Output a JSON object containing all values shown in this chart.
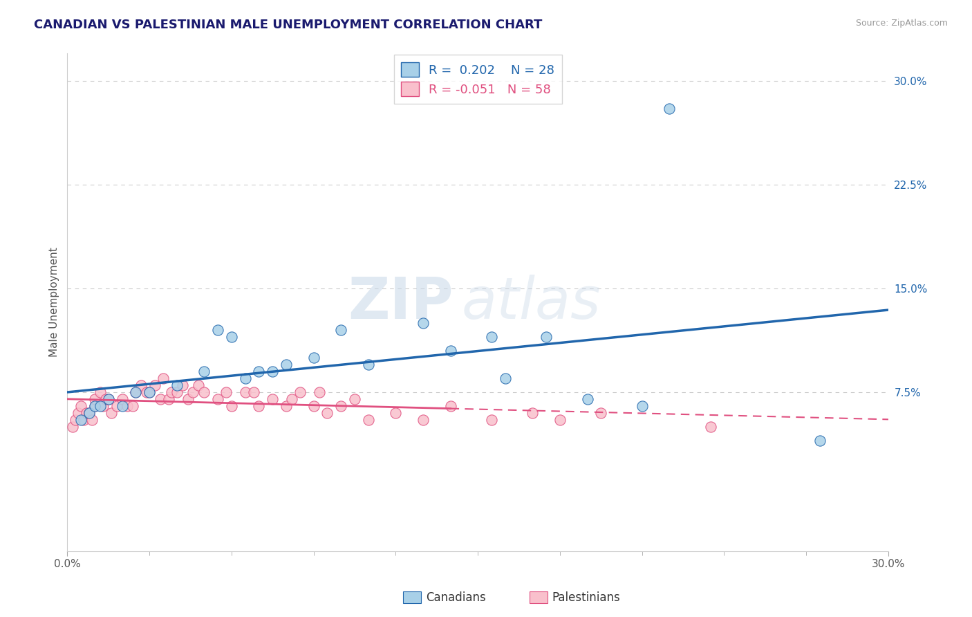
{
  "title": "CANADIAN VS PALESTINIAN MALE UNEMPLOYMENT CORRELATION CHART",
  "source": "Source: ZipAtlas.com",
  "ylabel": "Male Unemployment",
  "xlim": [
    0.0,
    0.3
  ],
  "ylim": [
    -0.04,
    0.32
  ],
  "grid_color": "#cccccc",
  "background_color": "#ffffff",
  "canadian_color": "#a8d0e8",
  "palestinian_color": "#f9c0cc",
  "canadian_line_color": "#2166ac",
  "palestinian_line_color": "#e05080",
  "R_canadian": 0.202,
  "N_canadian": 28,
  "R_palestinian": -0.051,
  "N_palestinian": 58,
  "canadians_x": [
    0.005,
    0.008,
    0.01,
    0.012,
    0.015,
    0.02,
    0.025,
    0.03,
    0.04,
    0.05,
    0.055,
    0.06,
    0.065,
    0.07,
    0.075,
    0.08,
    0.09,
    0.1,
    0.11,
    0.13,
    0.14,
    0.155,
    0.16,
    0.175,
    0.19,
    0.21,
    0.22,
    0.275
  ],
  "canadians_y": [
    0.055,
    0.06,
    0.065,
    0.065,
    0.07,
    0.065,
    0.075,
    0.075,
    0.08,
    0.09,
    0.12,
    0.115,
    0.085,
    0.09,
    0.09,
    0.095,
    0.1,
    0.12,
    0.095,
    0.125,
    0.105,
    0.115,
    0.085,
    0.115,
    0.07,
    0.065,
    0.28,
    0.04
  ],
  "palestinians_x": [
    0.002,
    0.003,
    0.004,
    0.005,
    0.006,
    0.007,
    0.008,
    0.009,
    0.01,
    0.01,
    0.012,
    0.013,
    0.014,
    0.015,
    0.016,
    0.018,
    0.02,
    0.022,
    0.024,
    0.025,
    0.027,
    0.029,
    0.03,
    0.032,
    0.034,
    0.035,
    0.037,
    0.038,
    0.04,
    0.042,
    0.044,
    0.046,
    0.048,
    0.05,
    0.055,
    0.058,
    0.06,
    0.065,
    0.068,
    0.07,
    0.075,
    0.08,
    0.082,
    0.085,
    0.09,
    0.092,
    0.095,
    0.1,
    0.105,
    0.11,
    0.12,
    0.13,
    0.14,
    0.155,
    0.17,
    0.18,
    0.195,
    0.235
  ],
  "palestinians_y": [
    0.05,
    0.055,
    0.06,
    0.065,
    0.055,
    0.06,
    0.06,
    0.055,
    0.065,
    0.07,
    0.075,
    0.065,
    0.07,
    0.07,
    0.06,
    0.065,
    0.07,
    0.065,
    0.065,
    0.075,
    0.08,
    0.075,
    0.075,
    0.08,
    0.07,
    0.085,
    0.07,
    0.075,
    0.075,
    0.08,
    0.07,
    0.075,
    0.08,
    0.075,
    0.07,
    0.075,
    0.065,
    0.075,
    0.075,
    0.065,
    0.07,
    0.065,
    0.07,
    0.075,
    0.065,
    0.075,
    0.06,
    0.065,
    0.07,
    0.055,
    0.06,
    0.055,
    0.065,
    0.055,
    0.06,
    0.055,
    0.06,
    0.05
  ],
  "watermark_zip": "ZIP",
  "watermark_atlas": "atlas",
  "legend_fontsize": 13,
  "title_fontsize": 13,
  "axis_label_fontsize": 11,
  "tick_fontsize": 11,
  "marker_size": 120
}
